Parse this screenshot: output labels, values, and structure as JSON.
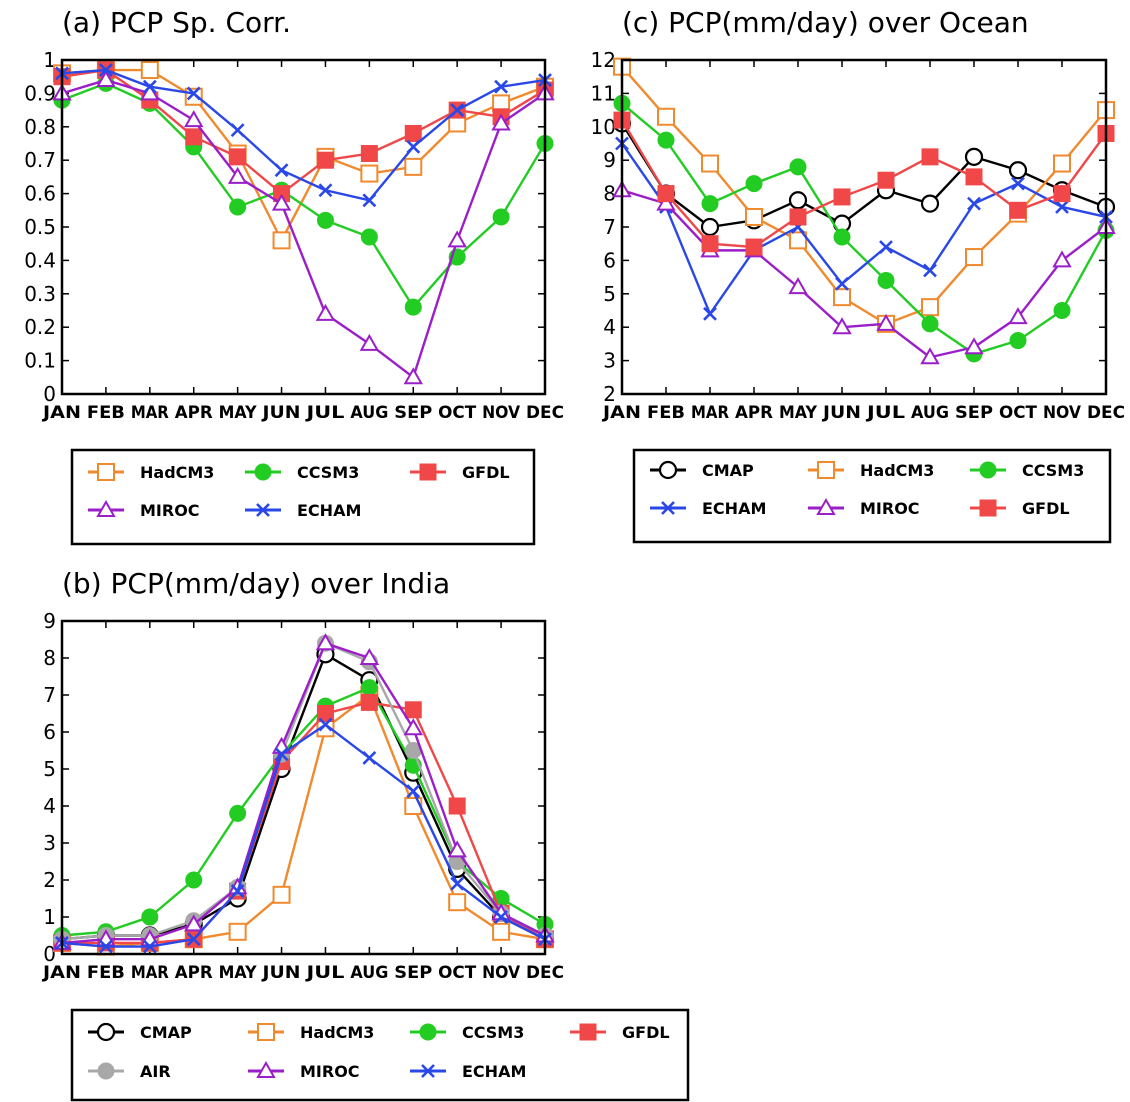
{
  "chart_data": [
    {
      "type": "line",
      "title": "(a) PCP Sp. Corr.",
      "categories": [
        "JAN",
        "FEB",
        "MAR",
        "APR",
        "MAY",
        "JUN",
        "JUL",
        "AUG",
        "SEP",
        "OCT",
        "NOV",
        "DEC"
      ],
      "ylim": [
        0,
        1
      ],
      "yticks": [
        "0",
        "0.1",
        "0.2",
        "0.3",
        "0.4",
        "0.5",
        "0.6",
        "0.7",
        "0.8",
        "0.9",
        "1"
      ],
      "grid": false,
      "legend_placement": "below",
      "series": [
        {
          "name": "HadCM3",
          "color": "#F08A2E",
          "marker": "open-square",
          "values": [
            0.96,
            0.97,
            0.97,
            0.89,
            0.72,
            0.46,
            0.71,
            0.66,
            0.68,
            0.81,
            0.87,
            0.92
          ]
        },
        {
          "name": "CCSM3",
          "color": "#22CC22",
          "marker": "filled-circle",
          "values": [
            0.88,
            0.93,
            0.87,
            0.74,
            0.56,
            0.61,
            0.52,
            0.47,
            0.26,
            0.41,
            0.53,
            0.75
          ]
        },
        {
          "name": "GFDL",
          "color": "#F04848",
          "marker": "filled-square",
          "values": [
            0.95,
            0.97,
            0.88,
            0.77,
            0.71,
            0.6,
            0.7,
            0.72,
            0.78,
            0.85,
            0.83,
            0.91
          ]
        },
        {
          "name": "MIROC",
          "color": "#9B1FC8",
          "marker": "open-triangle",
          "values": [
            0.9,
            0.94,
            0.9,
            0.82,
            0.65,
            0.57,
            0.24,
            0.15,
            0.05,
            0.46,
            0.81,
            0.9
          ]
        },
        {
          "name": "ECHAM",
          "color": "#2A48E8",
          "marker": "cross",
          "values": [
            0.96,
            0.97,
            0.92,
            0.9,
            0.79,
            0.67,
            0.61,
            0.58,
            0.74,
            0.85,
            0.92,
            0.94
          ]
        }
      ]
    },
    {
      "type": "line",
      "title": "(c) PCP(mm/day) over Ocean",
      "categories": [
        "JAN",
        "FEB",
        "MAR",
        "APR",
        "MAY",
        "JUN",
        "JUL",
        "AUG",
        "SEP",
        "OCT",
        "NOV",
        "DEC"
      ],
      "ylim": [
        2,
        12
      ],
      "yticks": [
        "2",
        "3",
        "4",
        "5",
        "6",
        "7",
        "8",
        "9",
        "10",
        "11",
        "12"
      ],
      "grid": false,
      "legend_placement": "below",
      "series": [
        {
          "name": "CMAP",
          "color": "#000000",
          "marker": "open-circle",
          "values": [
            10.1,
            8.0,
            7.0,
            7.2,
            7.8,
            7.1,
            8.1,
            7.7,
            9.1,
            8.7,
            8.1,
            7.6
          ]
        },
        {
          "name": "HadCM3",
          "color": "#F08A2E",
          "marker": "open-square",
          "values": [
            11.8,
            10.3,
            8.9,
            7.3,
            6.6,
            4.9,
            4.1,
            4.6,
            6.1,
            7.4,
            8.9,
            10.5
          ]
        },
        {
          "name": "CCSM3",
          "color": "#22CC22",
          "marker": "filled-circle",
          "values": [
            10.7,
            9.6,
            7.7,
            8.3,
            8.8,
            6.7,
            5.4,
            4.1,
            3.2,
            3.6,
            4.5,
            6.9
          ]
        },
        {
          "name": "ECHAM",
          "color": "#2A48E8",
          "marker": "cross",
          "values": [
            9.5,
            7.6,
            4.4,
            6.3,
            7.0,
            5.3,
            6.4,
            5.7,
            7.7,
            8.3,
            7.6,
            7.3
          ]
        },
        {
          "name": "MIROC",
          "color": "#9B1FC8",
          "marker": "open-triangle",
          "values": [
            8.1,
            7.7,
            6.3,
            6.3,
            5.2,
            4.0,
            4.1,
            3.1,
            3.4,
            4.3,
            6.0,
            7.0
          ]
        },
        {
          "name": "GFDL",
          "color": "#F04848",
          "marker": "filled-square",
          "values": [
            10.2,
            8.0,
            6.5,
            6.4,
            7.3,
            7.9,
            8.4,
            9.1,
            8.5,
            7.5,
            8.0,
            9.8
          ]
        }
      ]
    },
    {
      "type": "line",
      "title": "(b) PCP(mm/day) over India",
      "categories": [
        "JAN",
        "FEB",
        "MAR",
        "APR",
        "MAY",
        "JUN",
        "JUL",
        "AUG",
        "SEP",
        "OCT",
        "NOV",
        "DEC"
      ],
      "ylim": [
        0,
        9
      ],
      "yticks": [
        "0",
        "1",
        "2",
        "3",
        "4",
        "5",
        "6",
        "7",
        "8",
        "9"
      ],
      "grid": false,
      "legend_placement": "below",
      "series": [
        {
          "name": "CMAP",
          "color": "#000000",
          "marker": "open-circle",
          "values": [
            0.4,
            0.5,
            0.5,
            0.8,
            1.5,
            5.0,
            8.1,
            7.4,
            4.9,
            2.3,
            1.0,
            0.4
          ]
        },
        {
          "name": "HadCM3",
          "color": "#F08A2E",
          "marker": "open-square",
          "values": [
            0.3,
            0.2,
            0.3,
            0.4,
            0.6,
            1.6,
            6.1,
            7.0,
            4.0,
            1.4,
            0.6,
            0.4
          ]
        },
        {
          "name": "CCSM3",
          "color": "#22CC22",
          "marker": "filled-circle",
          "values": [
            0.5,
            0.6,
            1.0,
            2.0,
            3.8,
            5.4,
            6.7,
            7.2,
            5.1,
            2.5,
            1.5,
            0.8
          ]
        },
        {
          "name": "GFDL",
          "color": "#F04848",
          "marker": "filled-square",
          "values": [
            0.3,
            0.3,
            0.3,
            0.4,
            1.7,
            5.2,
            6.5,
            6.8,
            6.6,
            4.0,
            1.1,
            0.4
          ]
        },
        {
          "name": "AIR",
          "color": "#A8A8A8",
          "marker": "filled-circle",
          "values": [
            0.4,
            0.5,
            0.5,
            0.9,
            1.8,
            5.4,
            8.4,
            7.9,
            5.5,
            2.5,
            1.1,
            0.5
          ]
        },
        {
          "name": "MIROC",
          "color": "#9B1FC8",
          "marker": "open-triangle",
          "values": [
            0.3,
            0.4,
            0.4,
            0.8,
            1.8,
            5.6,
            8.4,
            8.0,
            6.1,
            2.8,
            1.1,
            0.5
          ]
        },
        {
          "name": "ECHAM",
          "color": "#2A48E8",
          "marker": "cross",
          "values": [
            0.3,
            0.2,
            0.2,
            0.4,
            1.7,
            5.4,
            6.2,
            5.3,
            4.4,
            1.9,
            1.0,
            0.4
          ]
        }
      ]
    }
  ]
}
